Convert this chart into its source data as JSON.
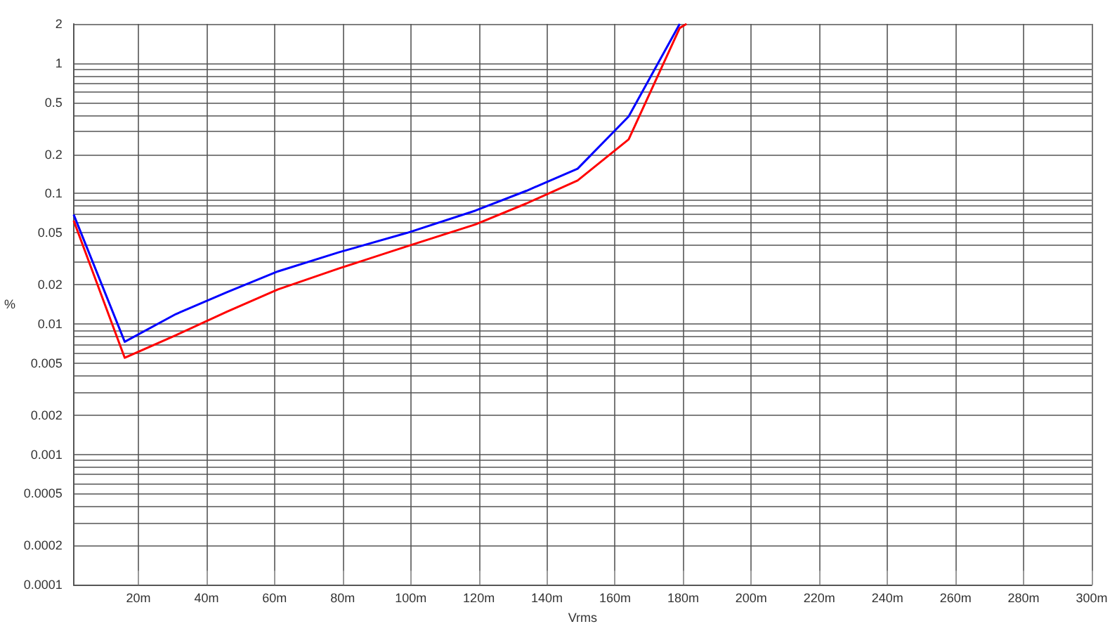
{
  "chart_data": {
    "type": "line",
    "xlabel": "Vrms",
    "ylabel": "%",
    "log": "y",
    "grid": true,
    "marker": "none",
    "line_style": "solid",
    "x": [
      1,
      16,
      31,
      46,
      61,
      79,
      99,
      119,
      134,
      149,
      164,
      179
    ],
    "series": [
      {
        "color": "#0000ff",
        "values": [
          0.069,
          0.0073,
          0.0119,
          0.0175,
          0.0253,
          0.0355,
          0.05,
          0.074,
          0.105,
          0.155,
          0.39,
          2
        ]
      },
      {
        "color": "#ff0000",
        "x": [
          1,
          16,
          31,
          46,
          61,
          79,
          99,
          119,
          134,
          149,
          164,
          179,
          181
        ],
        "values": [
          0.062,
          0.0055,
          0.0082,
          0.0124,
          0.0184,
          0.0267,
          0.0395,
          0.058,
          0.084,
          0.126,
          0.26,
          1.86,
          2
        ]
      }
    ],
    "xlim": [
      1,
      300
    ],
    "xticks": [
      {
        "value": 20,
        "label": "20m"
      },
      {
        "value": 40,
        "label": "40m"
      },
      {
        "value": 60,
        "label": "60m"
      },
      {
        "value": 80,
        "label": "80m"
      },
      {
        "value": 100,
        "label": "100m"
      },
      {
        "value": 120,
        "label": "120m"
      },
      {
        "value": 140,
        "label": "140m"
      },
      {
        "value": 160,
        "label": "160m"
      },
      {
        "value": 180,
        "label": "180m"
      },
      {
        "value": 200,
        "label": "200m"
      },
      {
        "value": 220,
        "label": "220m"
      },
      {
        "value": 240,
        "label": "240m"
      },
      {
        "value": 260,
        "label": "260m"
      },
      {
        "value": 280,
        "label": "280m"
      },
      {
        "value": 300,
        "label": "300m"
      }
    ],
    "ylim": [
      0.0001,
      2
    ],
    "yticks": [
      0.0001,
      0.0002,
      {
        "value": 0.0003,
        "label": null
      },
      {
        "value": 0.0004,
        "label": null
      },
      0.0005,
      {
        "value": 0.0006,
        "label": null
      },
      {
        "value": 0.0007,
        "label": null
      },
      {
        "value": 0.0008,
        "label": null
      },
      {
        "value": 0.0009,
        "label": null
      },
      0.001,
      0.002,
      {
        "value": 0.003,
        "label": null
      },
      {
        "value": 0.004,
        "label": null
      },
      0.005,
      {
        "value": 0.006,
        "label": null
      },
      {
        "value": 0.007,
        "label": null
      },
      {
        "value": 0.008,
        "label": null
      },
      {
        "value": 0.009,
        "label": null
      },
      0.01,
      0.02,
      {
        "value": 0.03,
        "label": null
      },
      {
        "value": 0.04,
        "label": null
      },
      0.05,
      {
        "value": 0.06,
        "label": null
      },
      {
        "value": 0.07,
        "label": null
      },
      {
        "value": 0.08,
        "label": null
      },
      {
        "value": 0.09,
        "label": null
      },
      0.1,
      0.2,
      {
        "value": 0.3,
        "label": null
      },
      {
        "value": 0.4,
        "label": null
      },
      0.5,
      {
        "value": 0.6,
        "label": null
      },
      {
        "value": 0.7,
        "label": null
      },
      {
        "value": 0.8,
        "label": null
      },
      {
        "value": 0.9,
        "label": null
      },
      1,
      2
    ]
  }
}
